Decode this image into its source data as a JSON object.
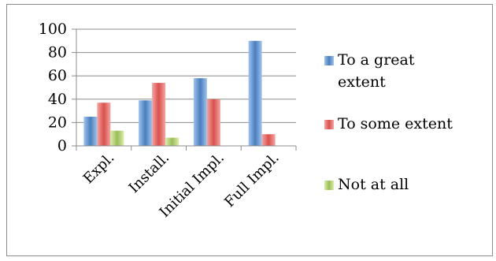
{
  "chart_data": {
    "type": "bar",
    "title": "",
    "xlabel": "",
    "ylabel": "",
    "categories": [
      "Expl.",
      "Install.",
      "Initial Impl.",
      "Full Impl."
    ],
    "series": [
      {
        "name": "To a great extent",
        "values": [
          25,
          39,
          58,
          90
        ],
        "color": "#4a7ebb",
        "color_light": "#9ec3ef"
      },
      {
        "name": "To some extent",
        "values": [
          37,
          54,
          40,
          10
        ],
        "color": "#d9504c",
        "color_light": "#f4a5a2"
      },
      {
        "name": "Not at all",
        "values": [
          13,
          7,
          0,
          0
        ],
        "color": "#9bbb59",
        "color_light": "#d9efaa"
      }
    ],
    "ylim": [
      0,
      100
    ],
    "yticks": [
      0,
      20,
      40,
      60,
      80,
      100
    ],
    "grid": true,
    "legend_position": "right"
  },
  "legend": {
    "items": [
      {
        "lines": [
          "To a great",
          "extent"
        ]
      },
      {
        "lines": [
          "To some extent"
        ]
      },
      {
        "lines": [
          "Not at all"
        ]
      }
    ]
  }
}
